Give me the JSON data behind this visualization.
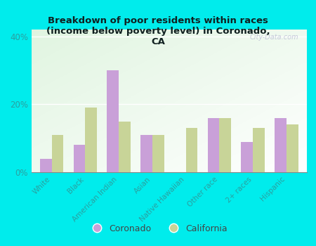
{
  "title": "Breakdown of poor residents within races\n(income below poverty level) in Coronado,\nCA",
  "categories": [
    "White",
    "Black",
    "American Indian",
    "Asian",
    "Native Hawaiian",
    "Other race",
    "2+ races",
    "Hispanic"
  ],
  "coronado": [
    4,
    8,
    30,
    11,
    0,
    16,
    9,
    16
  ],
  "california": [
    11,
    19,
    15,
    11,
    13,
    16,
    13,
    14
  ],
  "coronado_color": "#c9a0d8",
  "california_color": "#c8d498",
  "background_outer": "#00ecec",
  "background_inner": "#e8f5e0",
  "ylim": [
    0,
    42
  ],
  "yticks": [
    0,
    20,
    40
  ],
  "ytick_labels": [
    "0%",
    "20%",
    "40%"
  ],
  "watermark": "City-Data.com",
  "legend_coronado": "Coronado",
  "legend_california": "California",
  "bar_width": 0.35,
  "label_color": "#2aa0a0",
  "title_color": "#102020"
}
